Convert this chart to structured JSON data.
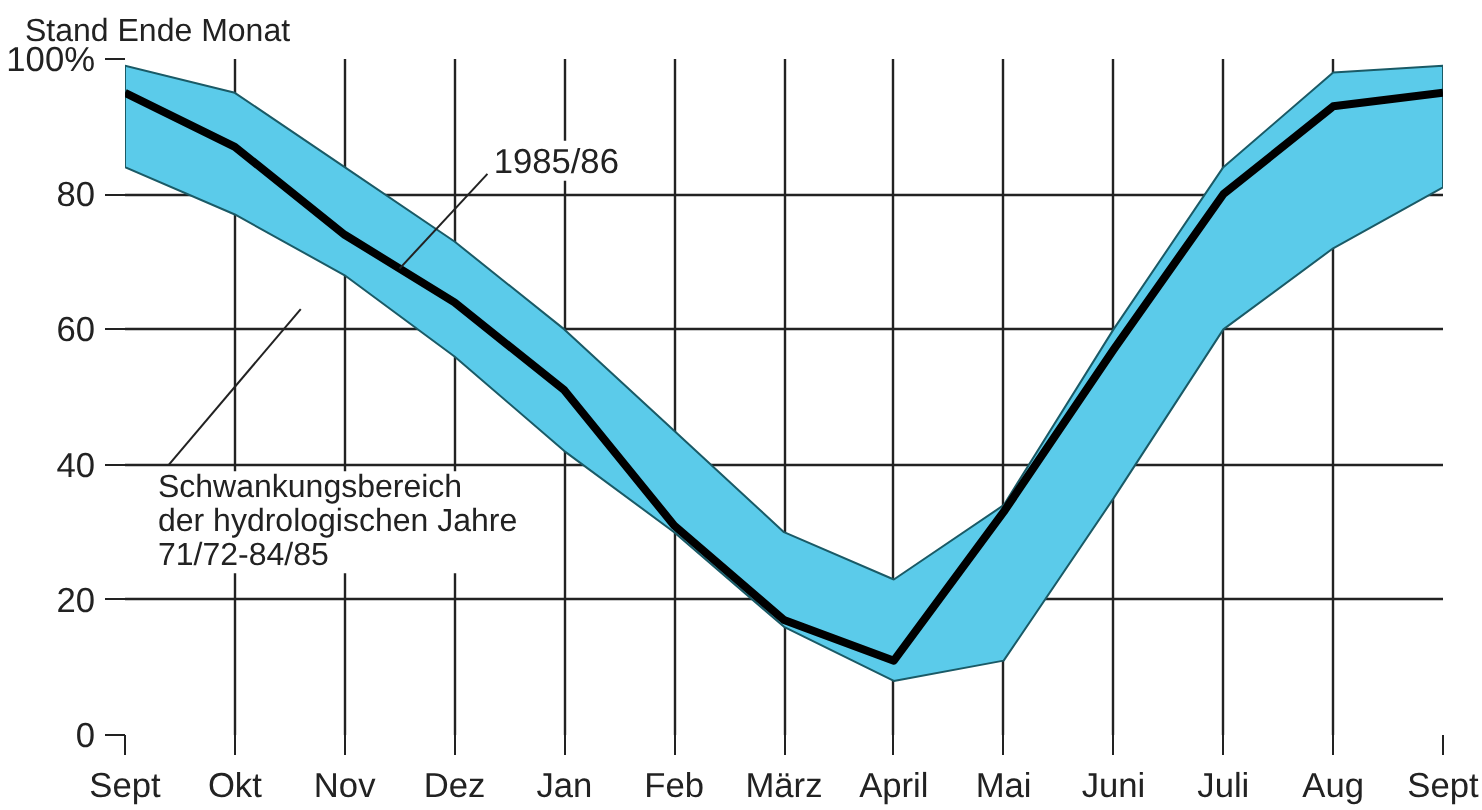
{
  "chart_data": {
    "type": "line",
    "ylabel": "Stand Ende Monat",
    "categories": [
      "Sept",
      "Okt",
      "Nov",
      "Dez",
      "Jan",
      "Feb",
      "März",
      "April",
      "Mai",
      "Juni",
      "Juli",
      "Aug",
      "Sept"
    ],
    "series": [
      {
        "name": "1985/86",
        "color": "#000000",
        "values": [
          95,
          87,
          74,
          64,
          51,
          31,
          17,
          11,
          33,
          57,
          80,
          93,
          95
        ],
        "lower": [
          84,
          77,
          68,
          56,
          42,
          30,
          16,
          8,
          11,
          35,
          60,
          72,
          81
        ],
        "upper": [
          99,
          95,
          84,
          73,
          60,
          45,
          30,
          23,
          34,
          60,
          84,
          98,
          99
        ]
      }
    ],
    "annotations": [
      "Schwankungsbereich\nder hydrologischen Jahre\n71/72-84/85"
    ],
    "ylim": [
      0,
      100
    ],
    "yticks": [
      0,
      20,
      40,
      60,
      80,
      {
        "value": 100,
        "label": "100%"
      }
    ],
    "grid": true,
    "marker": "none",
    "line_style": "solid"
  }
}
